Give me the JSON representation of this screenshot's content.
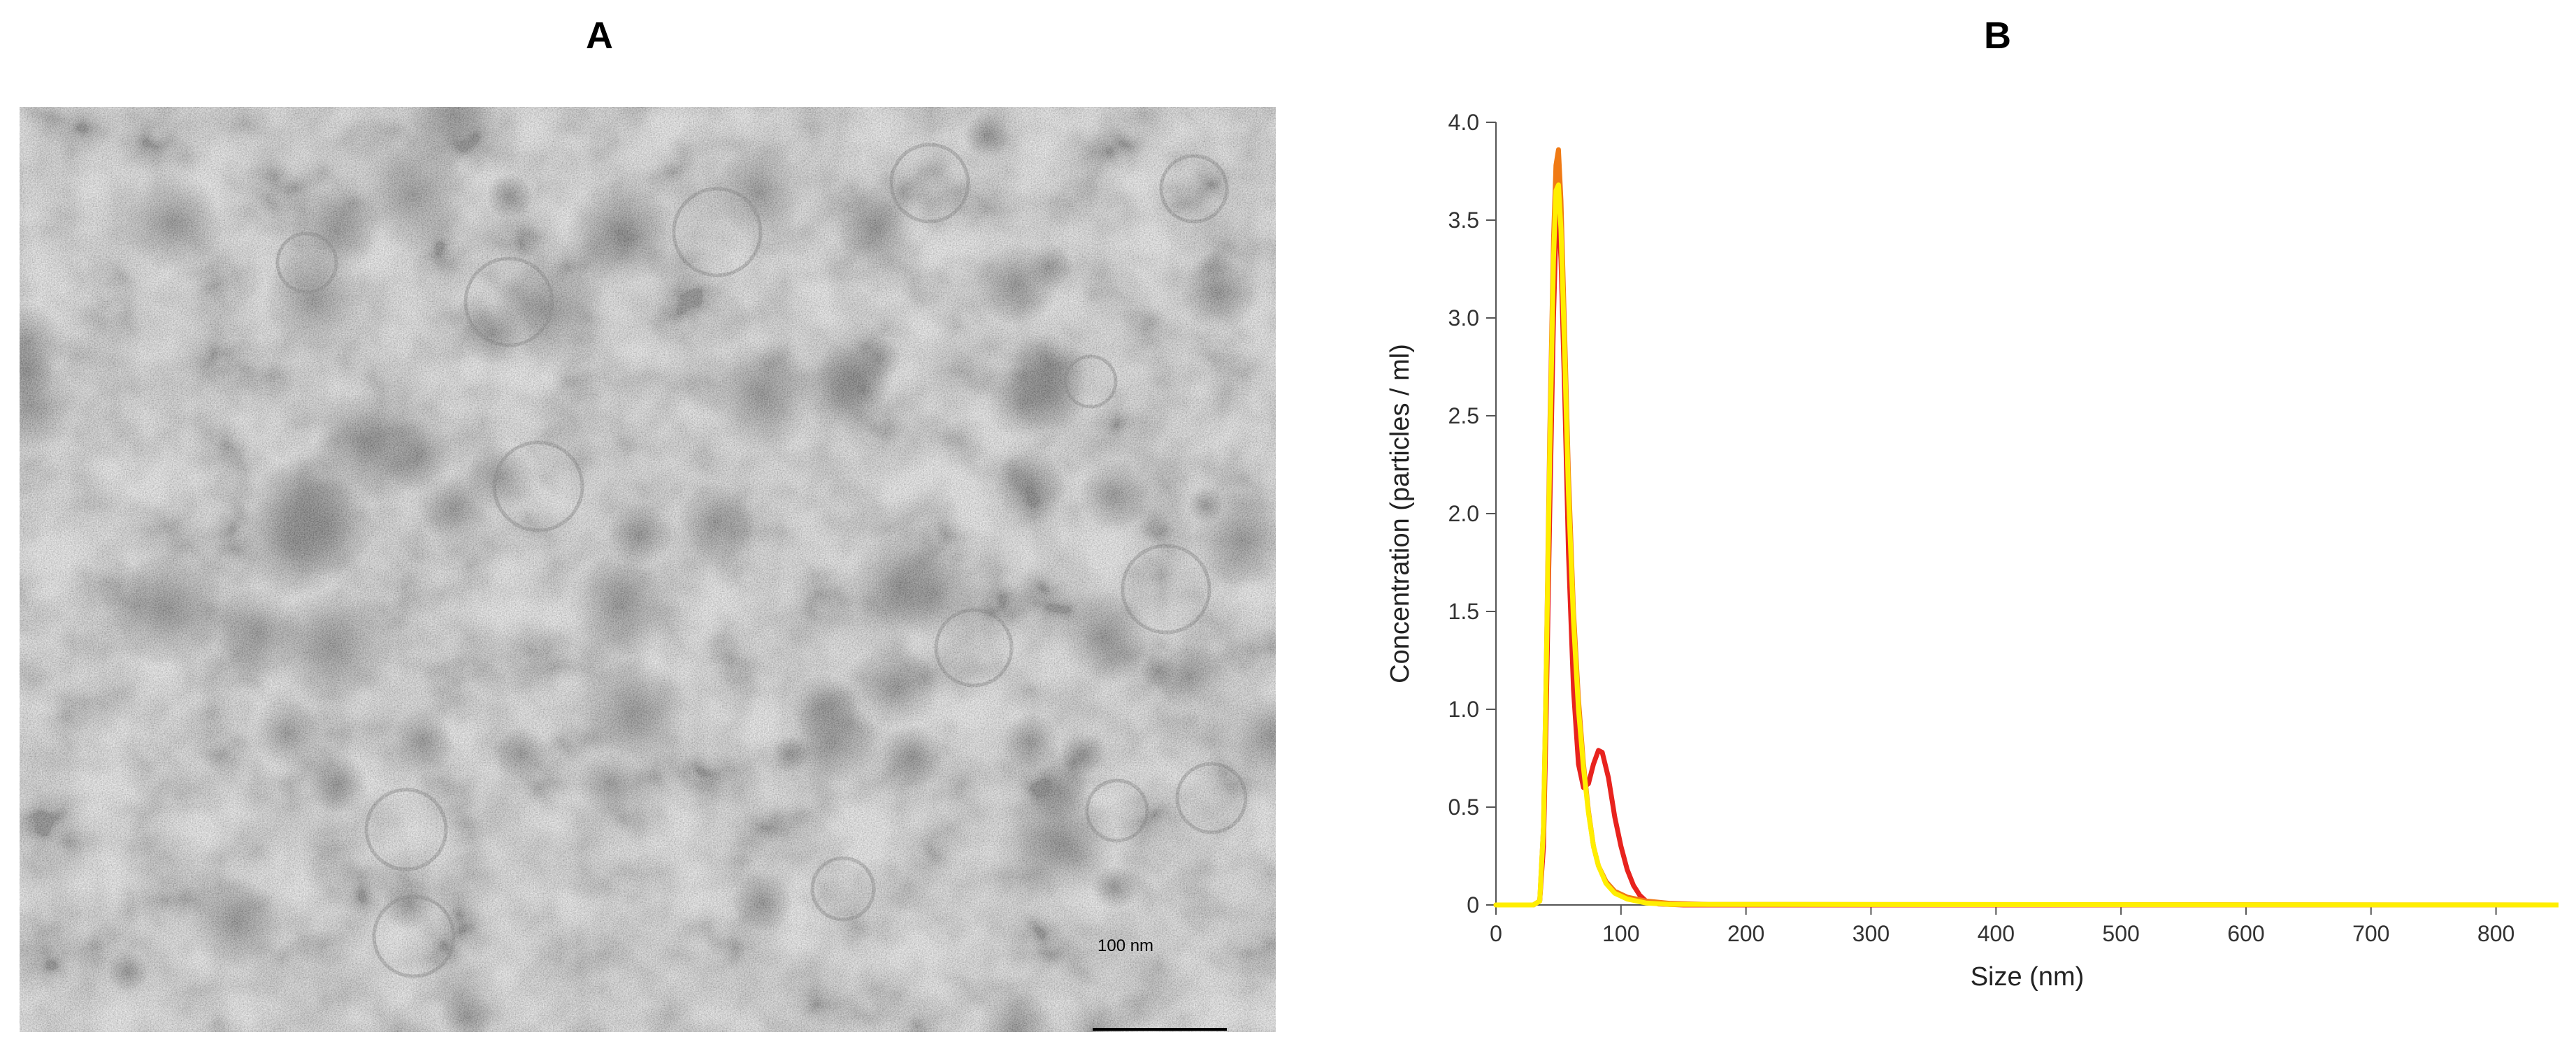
{
  "panels": {
    "a_label": "A",
    "b_label": "B"
  },
  "micrograph": {
    "scale_bar_label": "100 nm"
  },
  "chart_data": {
    "type": "line",
    "xlabel": "Size (nm)",
    "ylabel": "Concentration (particles / ml)",
    "xlim": [
      0,
      850
    ],
    "ylim": [
      0,
      4.0
    ],
    "x_ticks": [
      0,
      100,
      200,
      300,
      400,
      500,
      600,
      700,
      800
    ],
    "x_tick_labels": [
      "0",
      "100",
      "200",
      "300",
      "400",
      "500",
      "600",
      "700",
      "800"
    ],
    "y_ticks": [
      0,
      0.5,
      1.0,
      1.5,
      2.0,
      2.5,
      3.0,
      3.5,
      4.0
    ],
    "y_tick_labels": [
      "0",
      "0.5",
      "1.0",
      "1.5",
      "2.0",
      "2.5",
      "3.0",
      "3.5",
      "4.0"
    ],
    "grid": false,
    "series": [
      {
        "color": "#e8231e",
        "points": [
          [
            0,
            0
          ],
          [
            30,
            0
          ],
          [
            35,
            0.02
          ],
          [
            38,
            0.3
          ],
          [
            40,
            0.9
          ],
          [
            43,
            2.0
          ],
          [
            46,
            3.0
          ],
          [
            48,
            3.45
          ],
          [
            50,
            3.55
          ],
          [
            52,
            3.3
          ],
          [
            55,
            2.6
          ],
          [
            58,
            1.8
          ],
          [
            62,
            1.1
          ],
          [
            66,
            0.72
          ],
          [
            70,
            0.6
          ],
          [
            74,
            0.62
          ],
          [
            78,
            0.72
          ],
          [
            82,
            0.79
          ],
          [
            85,
            0.78
          ],
          [
            90,
            0.65
          ],
          [
            95,
            0.45
          ],
          [
            100,
            0.3
          ],
          [
            105,
            0.18
          ],
          [
            110,
            0.1
          ],
          [
            115,
            0.05
          ],
          [
            120,
            0.02
          ],
          [
            130,
            0.005
          ],
          [
            150,
            0
          ],
          [
            850,
            0
          ]
        ]
      },
      {
        "color": "#f07a14",
        "points": [
          [
            0,
            0
          ],
          [
            30,
            0
          ],
          [
            35,
            0.02
          ],
          [
            38,
            0.4
          ],
          [
            40,
            1.1
          ],
          [
            43,
            2.4
          ],
          [
            46,
            3.4
          ],
          [
            48,
            3.78
          ],
          [
            50,
            3.86
          ],
          [
            52,
            3.6
          ],
          [
            55,
            2.9
          ],
          [
            58,
            2.2
          ],
          [
            62,
            1.5
          ],
          [
            66,
            1.05
          ],
          [
            70,
            0.72
          ],
          [
            74,
            0.48
          ],
          [
            78,
            0.3
          ],
          [
            82,
            0.2
          ],
          [
            88,
            0.12
          ],
          [
            95,
            0.07
          ],
          [
            105,
            0.04
          ],
          [
            120,
            0.02
          ],
          [
            140,
            0.008
          ],
          [
            170,
            0.003
          ],
          [
            850,
            0
          ]
        ]
      },
      {
        "color": "#ffee00",
        "points": [
          [
            0,
            0
          ],
          [
            30,
            0
          ],
          [
            35,
            0.02
          ],
          [
            38,
            0.4
          ],
          [
            40,
            1.1
          ],
          [
            43,
            2.3
          ],
          [
            46,
            3.3
          ],
          [
            48,
            3.65
          ],
          [
            50,
            3.68
          ],
          [
            52,
            3.45
          ],
          [
            55,
            2.8
          ],
          [
            58,
            2.1
          ],
          [
            62,
            1.45
          ],
          [
            66,
            1.0
          ],
          [
            70,
            0.7
          ],
          [
            74,
            0.47
          ],
          [
            78,
            0.3
          ],
          [
            82,
            0.2
          ],
          [
            88,
            0.11
          ],
          [
            95,
            0.06
          ],
          [
            105,
            0.03
          ],
          [
            120,
            0.01
          ],
          [
            140,
            0.003
          ],
          [
            850,
            0
          ]
        ]
      }
    ]
  }
}
